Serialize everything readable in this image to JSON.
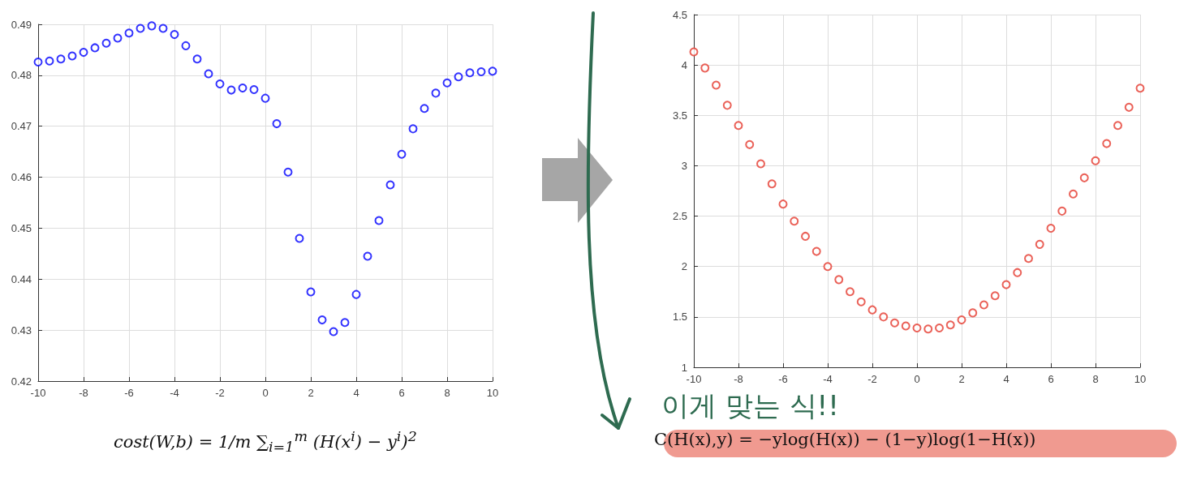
{
  "chart_data": [
    {
      "type": "scatter",
      "marker": "circle",
      "grid": true,
      "xlim": [
        -10,
        10
      ],
      "xticks": [
        -10,
        -8,
        -6,
        -4,
        -2,
        0,
        2,
        4,
        6,
        8,
        10
      ],
      "ylim": [
        0.42,
        0.49
      ],
      "yticks": [
        0.42,
        0.43,
        0.44,
        0.45,
        0.46,
        0.47,
        0.48,
        0.49
      ],
      "x": [
        -10,
        -9.5,
        -9,
        -8.5,
        -8,
        -7.5,
        -7,
        -6.5,
        -6,
        -5.5,
        -5,
        -4.5,
        -4,
        -3.5,
        -3,
        -2.5,
        -2,
        -1.5,
        -1,
        -0.5,
        0,
        0.5,
        1,
        1.5,
        2,
        2.5,
        3,
        3.5,
        4,
        4.5,
        5,
        5.5,
        6,
        6.5,
        7,
        7.5,
        8,
        8.5,
        9,
        9.5,
        10
      ],
      "series": [
        {
          "color": "#0000ff",
          "values": [
            0.4826,
            0.4828,
            0.4832,
            0.4838,
            0.4845,
            0.4854,
            0.4863,
            0.4873,
            0.4883,
            0.4892,
            0.4897,
            0.4892,
            0.488,
            0.4858,
            0.4832,
            0.4803,
            0.4783,
            0.4771,
            0.4775,
            0.4772,
            0.4755,
            0.4705,
            0.461,
            0.448,
            0.4375,
            0.432,
            0.4297,
            0.4315,
            0.437,
            0.4445,
            0.4515,
            0.4585,
            0.4645,
            0.4695,
            0.4735,
            0.4765,
            0.4785,
            0.4797,
            0.4805,
            0.4807,
            0.4808
          ]
        }
      ],
      "annotations": [
        "cost(W,b) = 1/m ∑$_{i=1}$$^{m}$ (H(x$^{i}$) − y$^{i}$)$^{2}$"
      ]
    },
    {
      "type": "scatter",
      "marker": "circle",
      "grid": true,
      "xlim": [
        -10,
        10
      ],
      "xticks": [
        -10,
        -8,
        -6,
        -4,
        -2,
        0,
        2,
        4,
        6,
        8,
        10
      ],
      "ylim": [
        1,
        4.5
      ],
      "yticks": [
        1,
        1.5,
        2,
        2.5,
        3,
        3.5,
        4,
        4.5
      ],
      "x": [
        -10,
        -9.5,
        -9,
        -8.5,
        -8,
        -7.5,
        -7,
        -6.5,
        -6,
        -5.5,
        -5,
        -4.5,
        -4,
        -3.5,
        -3,
        -2.5,
        -2,
        -1.5,
        -1,
        -0.5,
        0,
        0.5,
        1,
        1.5,
        2,
        2.5,
        3,
        3.5,
        4,
        4.5,
        5,
        5.5,
        6,
        6.5,
        7,
        7.5,
        8,
        8.5,
        9,
        9.5,
        10
      ],
      "series": [
        {
          "color": "#e5392e",
          "values": [
            4.13,
            3.97,
            3.8,
            3.6,
            3.4,
            3.21,
            3.02,
            2.82,
            2.62,
            2.45,
            2.3,
            2.15,
            2.0,
            1.87,
            1.75,
            1.65,
            1.57,
            1.5,
            1.44,
            1.41,
            1.39,
            1.38,
            1.39,
            1.42,
            1.47,
            1.54,
            1.62,
            1.71,
            1.82,
            1.94,
            2.08,
            2.22,
            2.38,
            2.55,
            2.72,
            2.88,
            3.05,
            3.22,
            3.4,
            3.58,
            3.77
          ]
        }
      ],
      "annotations": [
        "이게 맞는 식!!",
        "C(H(x),y) = −ylog(H(x)) − (1−y)log(1−H(x))"
      ]
    }
  ]
}
